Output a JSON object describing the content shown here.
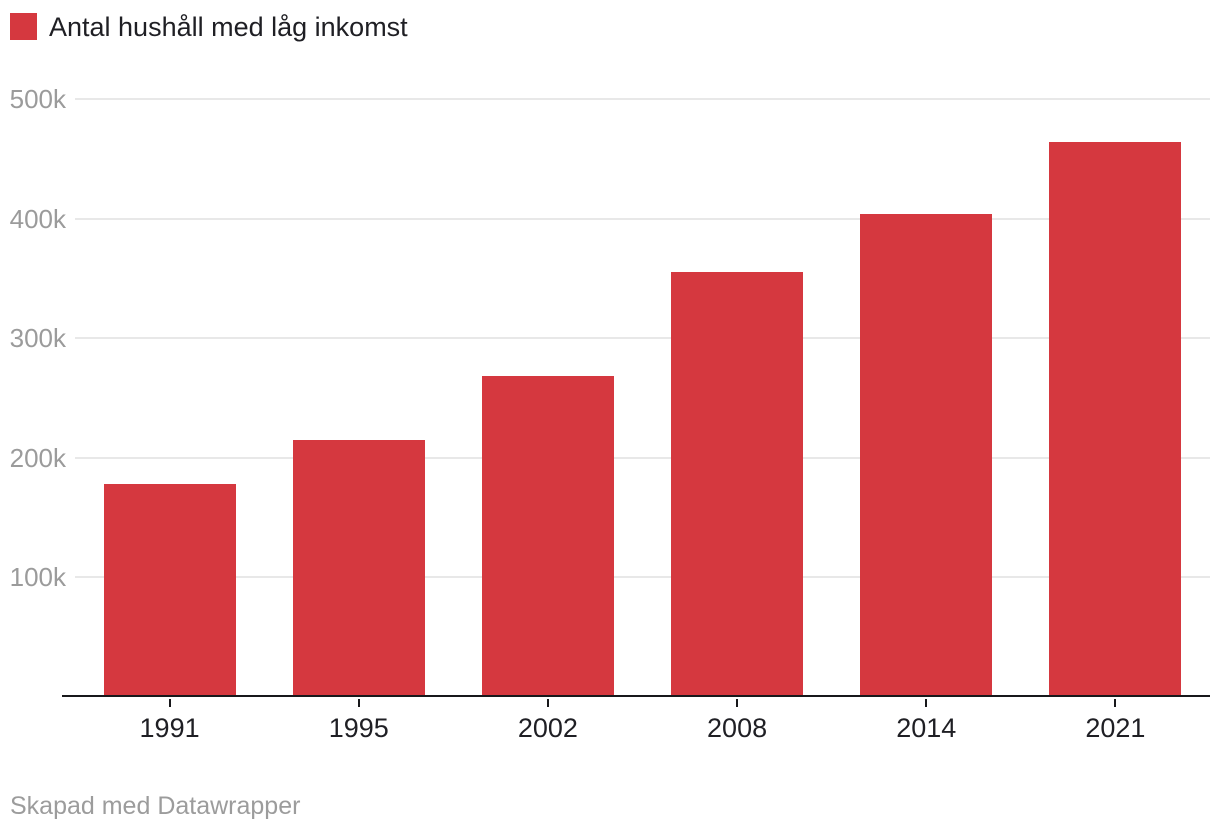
{
  "legend": {
    "label": "Antal hushåll med låg inkomst",
    "swatch_color": "#d5383f"
  },
  "footer": {
    "credit": "Skapad med Datawrapper"
  },
  "colors": {
    "bar": "#d5383f",
    "gridline": "#e8e8e8",
    "axis_line": "#18181b",
    "y_tick_label": "#9b9b9b",
    "x_tick_label": "#1f1f24",
    "footer_text": "#9c9c9c",
    "background": "#ffffff"
  },
  "chart_data": {
    "type": "bar",
    "title": "",
    "xlabel": "",
    "ylabel": "",
    "categories": [
      "1991",
      "1995",
      "2002",
      "2008",
      "2014",
      "2021"
    ],
    "values": [
      178000,
      215000,
      268000,
      355000,
      404000,
      464000
    ],
    "series_name": "Antal hushåll med låg inkomst",
    "ylim": [
      0,
      500000
    ],
    "y_ticks": [
      {
        "value": 100000,
        "label": "100k"
      },
      {
        "value": 200000,
        "label": "200k"
      },
      {
        "value": 300000,
        "label": "300k"
      },
      {
        "value": 400000,
        "label": "400k"
      },
      {
        "value": 500000,
        "label": "500k"
      }
    ],
    "grid": true,
    "legend_position": "top-left",
    "bar_color": "#d5383f"
  }
}
